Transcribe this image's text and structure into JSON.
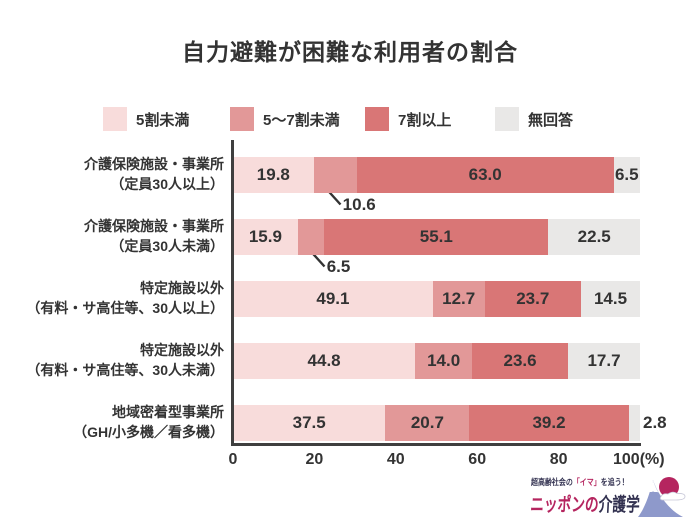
{
  "chart_data": {
    "type": "bar",
    "stacked": true,
    "orientation": "horizontal",
    "title": "自力避難が困難な利用者の割合",
    "categories": [
      {
        "line1": "介護保険施設・事業所",
        "line2": "（定員30人以上）"
      },
      {
        "line1": "介護保険施設・事業所",
        "line2": "（定員30人未満）"
      },
      {
        "line1": "特定施設以外",
        "line2": "（有料・サ高住等、30人以上）"
      },
      {
        "line1": "特定施設以外",
        "line2": "（有料・サ高住等、30人未満）"
      },
      {
        "line1": "地域密着型事業所",
        "line2": "（GH/小多機／看多機）"
      }
    ],
    "series": [
      {
        "name": "5割未満",
        "color": "#f8dcdb",
        "values": [
          19.8,
          15.9,
          49.1,
          44.8,
          37.5
        ],
        "labels": [
          "19.8",
          "15.9",
          "49.1",
          "44.8",
          "37.5"
        ]
      },
      {
        "name": "5〜7割未満",
        "color": "#e29898",
        "values": [
          10.6,
          6.5,
          12.7,
          14.0,
          20.7
        ],
        "labels": [
          "10.6",
          "6.5",
          "12.7",
          "14.0",
          "20.7"
        ]
      },
      {
        "name": "7割以上",
        "color": "#d97676",
        "values": [
          63.0,
          55.1,
          23.7,
          23.6,
          39.2
        ],
        "labels": [
          "63.0",
          "55.1",
          "23.7",
          "23.6",
          "39.2"
        ]
      },
      {
        "name": "無回答",
        "color": "#e9e8e7",
        "values": [
          6.5,
          22.5,
          14.5,
          17.7,
          2.8
        ],
        "labels": [
          "6.5",
          "22.5",
          "14.5",
          "17.7",
          "2.8"
        ]
      }
    ],
    "xlim": [
      0,
      100
    ],
    "x_ticks": [
      {
        "label": "0",
        "value": 0
      },
      {
        "label": "20",
        "value": 20
      },
      {
        "label": "40",
        "value": 40
      },
      {
        "label": "60",
        "value": 60
      },
      {
        "label": "80",
        "value": 80
      },
      {
        "label": "100(%)",
        "value": 100
      }
    ],
    "legend_position": "top",
    "grid": false,
    "label_overrides": [
      {
        "row": 0,
        "series": 1,
        "mode": "callout_below"
      },
      {
        "row": 1,
        "series": 1,
        "mode": "callout_below"
      },
      {
        "row": 4,
        "series": 3,
        "mode": "outside_right"
      }
    ]
  },
  "colors": {
    "text": "#333333",
    "axis": "#3f3f3f",
    "brand_magenta": "#b5255f",
    "brand_navy": "#323150",
    "fuji_blue": "#8e99cb"
  },
  "footer": {
    "tagline": {
      "pre": "超高齢社会の",
      "highlight": "「イマ」",
      "post": "を追う！"
    },
    "brand": {
      "first": "ニッポンの",
      "second": "介護学"
    }
  }
}
